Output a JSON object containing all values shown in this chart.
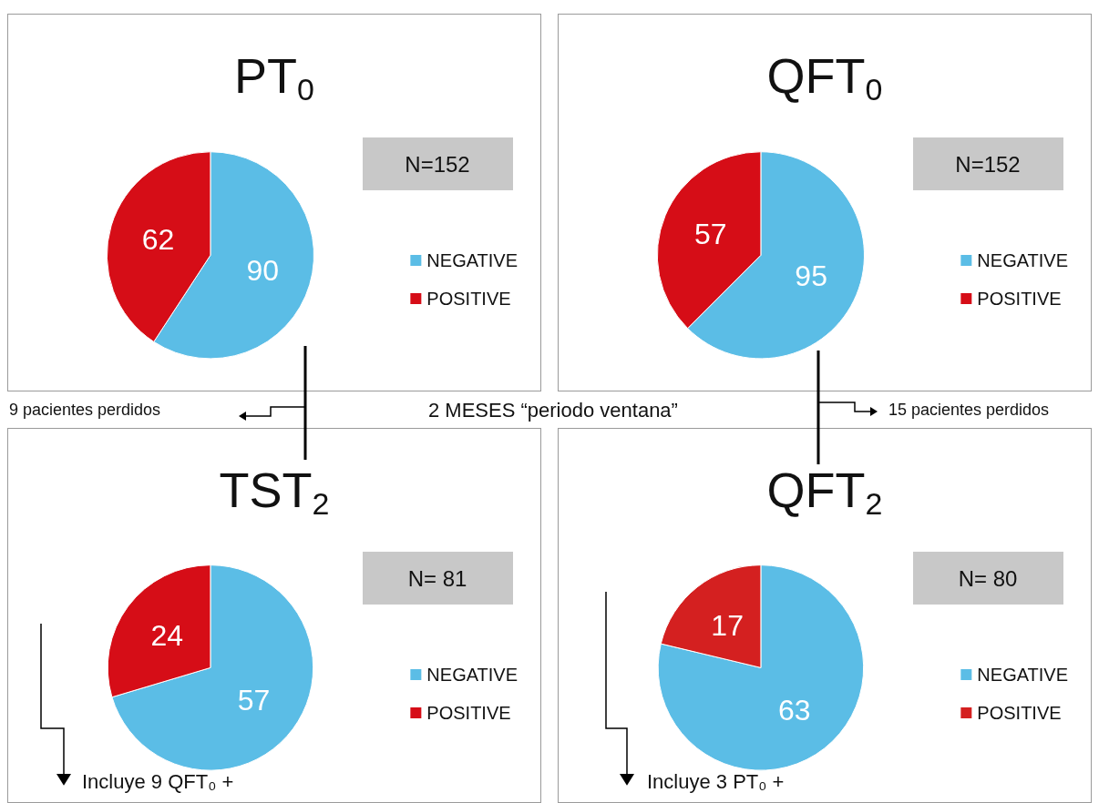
{
  "chart_data": [
    {
      "type": "pie",
      "title": "PT$_{0}$",
      "categories": [
        "NEGATIVE",
        "POSITIVE"
      ],
      "values": [
        90,
        62
      ],
      "colors": [
        "#5bbde6",
        "#d60d17"
      ],
      "data_labels": true,
      "legend": "right",
      "annotations": [
        "N=152",
        "9 pacientes perdidos",
        "2 MESES “periodo ventana”"
      ]
    },
    {
      "type": "pie",
      "title": "QFT$_{0}$",
      "categories": [
        "NEGATIVE",
        "POSITIVE"
      ],
      "values": [
        95,
        57
      ],
      "colors": [
        "#5bbde6",
        "#d60d17"
      ],
      "data_labels": true,
      "legend": "right",
      "annotations": [
        "N=152",
        "15 pacientes perdidos"
      ]
    },
    {
      "type": "pie",
      "title": "TST$_{2}$",
      "categories": [
        "NEGATIVE",
        "POSITIVE"
      ],
      "values": [
        57,
        24
      ],
      "colors": [
        "#5bbde6",
        "#d60d17"
      ],
      "data_labels": true,
      "legend": "right",
      "annotations": [
        "N= 81",
        "Incluye 9 QFT₀ +"
      ]
    },
    {
      "type": "pie",
      "title": "QFT$_{2}$",
      "categories": [
        "NEGATIVE",
        "POSITIVE"
      ],
      "values": [
        63,
        17
      ],
      "colors": [
        "#5bbde6",
        "#d42020"
      ],
      "data_labels": true,
      "legend": "right",
      "annotations": [
        "N= 80",
        "Incluye 3 PT₀ +"
      ]
    }
  ]
}
